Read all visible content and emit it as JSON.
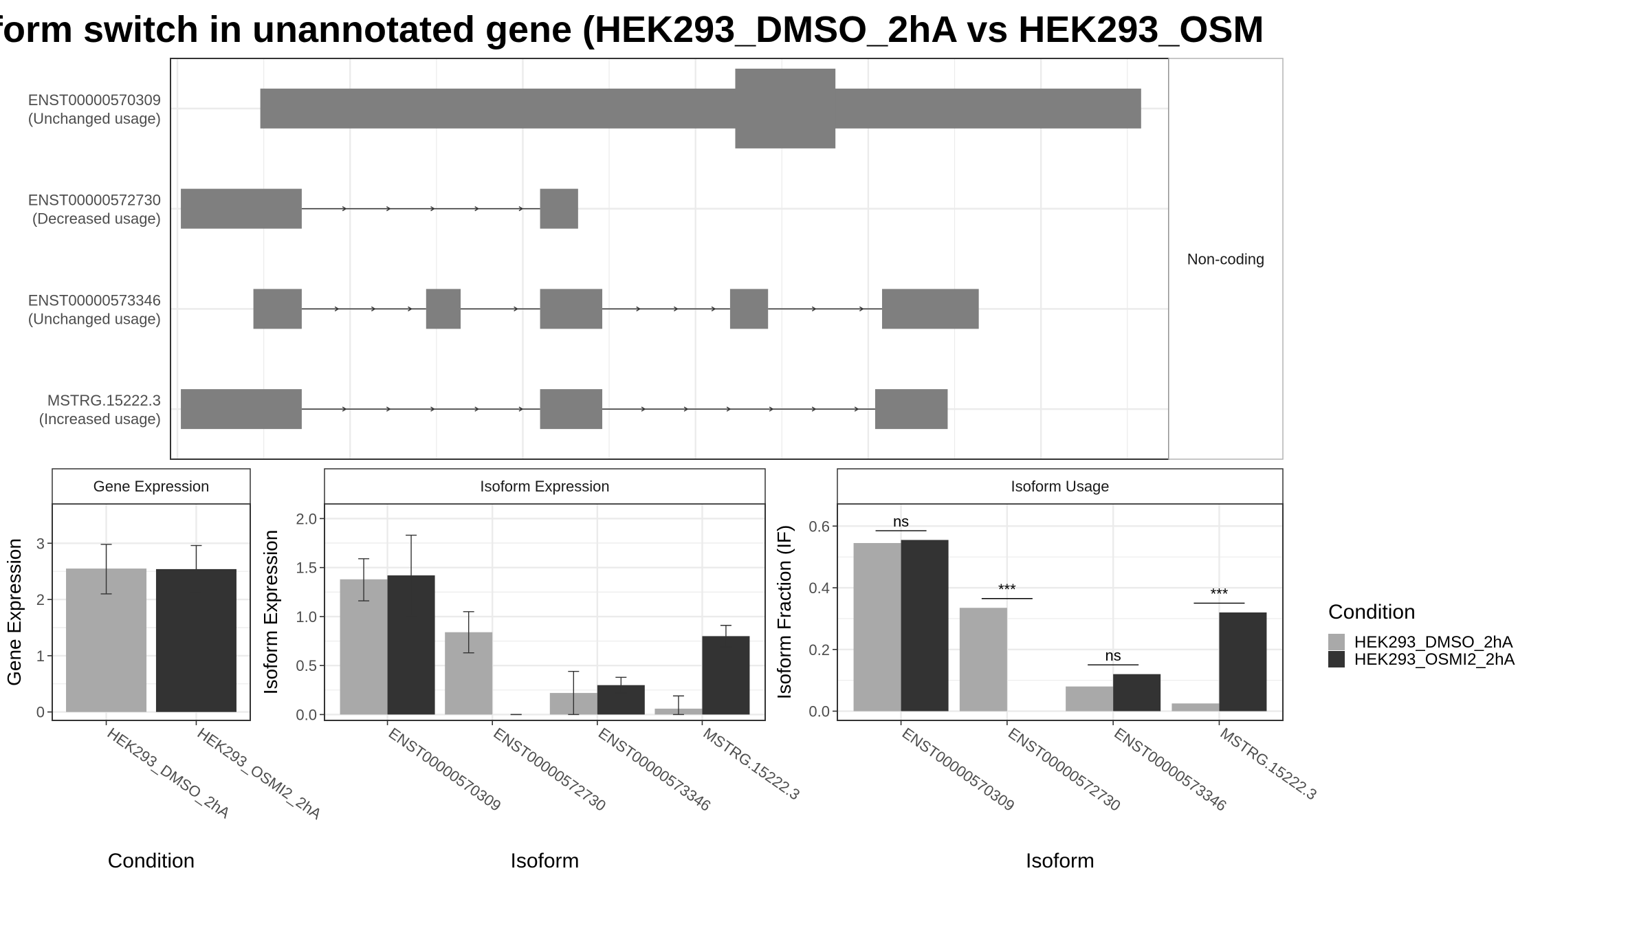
{
  "title": "form switch in unannotated gene (HEK293_DMSO_2hA vs HEK293_OSM",
  "chart_data": [
    {
      "type": "gene-structure",
      "strip_label": "Non-coding",
      "transcripts": [
        {
          "id": "ENST00000570309",
          "usage": "(Unchanged usage)",
          "exons": [
            [
              0.48,
              5.58
            ]
          ],
          "thick": [
            [
              3.23,
              3.81
            ]
          ],
          "introns": []
        },
        {
          "id": "ENST00000572730",
          "usage": "(Decreased usage)",
          "exons": [
            [
              0.02,
              0.72
            ],
            [
              2.1,
              2.32
            ]
          ],
          "thick": [],
          "introns": [
            [
              0.72,
              2.1
            ]
          ]
        },
        {
          "id": "ENST00000573346",
          "usage": "(Unchanged usage)",
          "exons": [
            [
              0.44,
              0.72
            ],
            [
              1.44,
              1.64
            ],
            [
              2.1,
              2.46
            ],
            [
              3.2,
              3.42
            ],
            [
              4.08,
              4.64
            ]
          ],
          "thick": [],
          "introns": [
            [
              0.72,
              1.44
            ],
            [
              1.64,
              2.1
            ],
            [
              2.46,
              3.2
            ],
            [
              3.42,
              4.08
            ]
          ]
        },
        {
          "id": "MSTRG.15222.3",
          "usage": "(Increased usage)",
          "exons": [
            [
              0.02,
              0.72
            ],
            [
              2.1,
              2.46
            ],
            [
              4.04,
              4.46
            ]
          ],
          "thick": [],
          "introns": [
            [
              0.72,
              2.1
            ],
            [
              2.46,
              4.04
            ]
          ]
        }
      ]
    },
    {
      "type": "bar",
      "panel": "Gene Expression",
      "xlabel": "Condition",
      "ylabel": "Gene Expression",
      "ylim": [
        -0.15,
        3.7
      ],
      "yticks": [
        "0",
        "1",
        "2",
        "3"
      ],
      "categories": [
        "HEK293_DMSO_2hA",
        "HEK293_OSMI2_2hA"
      ],
      "series": [
        {
          "values": [
            2.55,
            2.54
          ],
          "err_low": [
            2.1,
            2.12
          ],
          "err_high": [
            2.98,
            2.96
          ]
        }
      ]
    },
    {
      "type": "bar",
      "panel": "Isoform Expression",
      "xlabel": "Isoform",
      "ylabel": "Isoform Expression",
      "ylim": [
        -0.06,
        2.15
      ],
      "yticks": [
        "0.0",
        "0.5",
        "1.0",
        "1.5",
        "2.0"
      ],
      "categories": [
        "ENST00000570309",
        "ENST00000572730",
        "ENST00000573346",
        "MSTRG.15222.3"
      ],
      "series": [
        {
          "name": "HEK293_DMSO_2hA",
          "values": [
            1.38,
            0.84,
            0.22,
            0.06
          ],
          "err_low": [
            1.16,
            0.63,
            0.0,
            0.0
          ],
          "err_high": [
            1.59,
            1.05,
            0.44,
            0.19
          ]
        },
        {
          "name": "HEK293_OSMI2_2hA",
          "values": [
            1.42,
            0.0,
            0.3,
            0.8
          ],
          "err_low": [
            1.01,
            0.0,
            0.22,
            0.69
          ],
          "err_high": [
            1.83,
            0.0,
            0.38,
            0.91
          ]
        }
      ]
    },
    {
      "type": "bar",
      "panel": "Isoform Usage",
      "xlabel": "Isoform",
      "ylabel": "Isoform Fraction (IF)",
      "ylim": [
        -0.03,
        0.672
      ],
      "yticks": [
        "0.0",
        "0.2",
        "0.4",
        "0.6"
      ],
      "categories": [
        "ENST00000570309",
        "ENST00000572730",
        "ENST00000573346",
        "MSTRG.15222.3"
      ],
      "series": [
        {
          "name": "HEK293_DMSO_2hA",
          "values": [
            0.545,
            0.335,
            0.08,
            0.025
          ]
        },
        {
          "name": "HEK293_OSMI2_2hA",
          "values": [
            0.555,
            0.0,
            0.12,
            0.32
          ]
        }
      ],
      "significance": [
        {
          "label": "ns",
          "y": 0.585
        },
        {
          "label": "***",
          "y": 0.365
        },
        {
          "label": "ns",
          "y": 0.15
        },
        {
          "label": "***",
          "y": 0.35
        }
      ]
    }
  ],
  "legend": {
    "title": "Condition",
    "items": [
      {
        "label": "HEK293_DMSO_2hA",
        "color": "#a9a9a9"
      },
      {
        "label": "HEK293_OSMI2_2hA",
        "color": "#333333"
      }
    ]
  },
  "colors": {
    "exon": "#7f7f7f",
    "dmso": "#a9a9a9",
    "osmi": "#333333",
    "grid": "#ebebeb"
  }
}
